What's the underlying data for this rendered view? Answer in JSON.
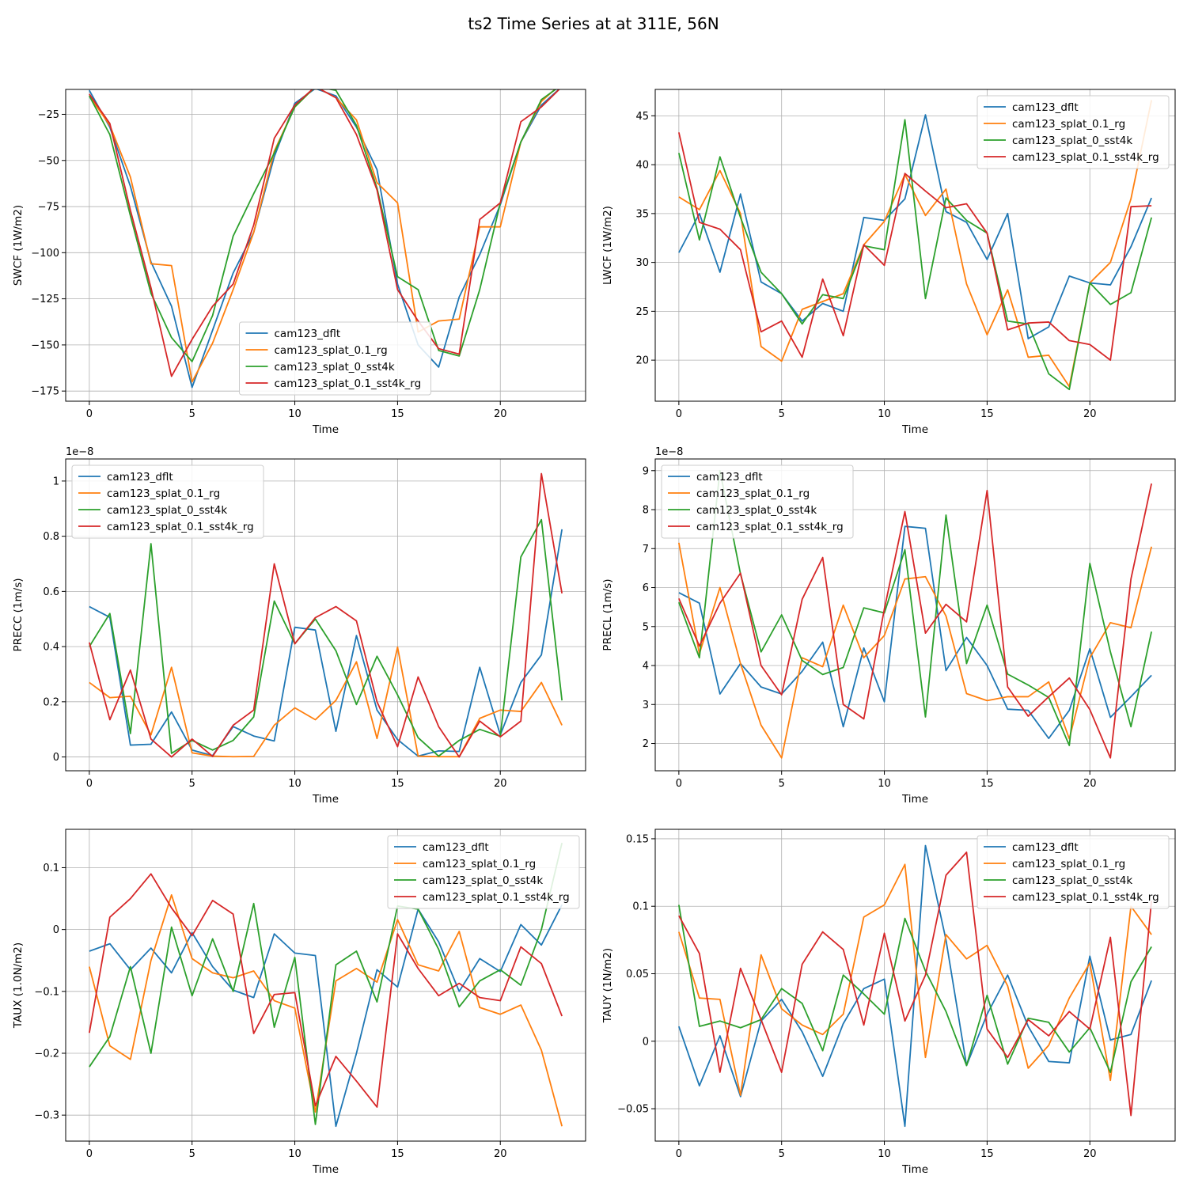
{
  "figure_title": "ts2 Time Series at at 311E, 56N",
  "colors": {
    "series": [
      "#1f77b4",
      "#ff7f0e",
      "#2ca02c",
      "#d62728"
    ],
    "grid": "#b0b0b0",
    "spine": "#000000"
  },
  "chart_data": [
    {
      "type": "line",
      "xlabel": "Time",
      "ylabel": "SWCF (1W/m2)",
      "xlim": [
        -1.15,
        24.15
      ],
      "ylim": [
        -180.5,
        -11.5
      ],
      "xticks": [
        0,
        5,
        10,
        15,
        20
      ],
      "yticks": [
        -175,
        -150,
        -125,
        -100,
        -75,
        -50,
        -25
      ],
      "exponent_label": "",
      "legend": "lower-center",
      "series": [
        {
          "name": "cam123_dflt",
          "values": [
            -12,
            -32,
            -64,
            -105,
            -129,
            -173,
            -142,
            -111,
            -89,
            -48,
            -19,
            -11,
            -15,
            -32,
            -55,
            -117,
            -150,
            -162,
            -124,
            -101,
            -74,
            -40,
            -20,
            -10
          ]
        },
        {
          "name": "cam123_splat_0.1_rg",
          "values": [
            -15,
            -31,
            -59,
            -106,
            -107,
            -170,
            -149,
            -120,
            -89,
            -45,
            -21,
            -10,
            -16,
            -28,
            -62,
            -73,
            -143,
            -137,
            -136,
            -86,
            -86,
            -40,
            -18,
            -8
          ]
        },
        {
          "name": "cam123_splat_0_sst4k",
          "values": [
            -15,
            -36,
            -80,
            -122,
            -146,
            -159,
            -134,
            -91,
            -68,
            -46,
            -21,
            -10,
            -12,
            -31,
            -65,
            -113,
            -120,
            -153,
            -156,
            -120,
            -73,
            -40,
            -17,
            -9
          ]
        },
        {
          "name": "cam123_splat_0.1_sst4k_rg",
          "values": [
            -14,
            -30,
            -77,
            -119,
            -167,
            -147,
            -129,
            -117,
            -85,
            -38,
            -20,
            -10,
            -16,
            -36,
            -66,
            -120,
            -137,
            -152,
            -155,
            -82,
            -73,
            -29,
            -21,
            -10
          ]
        }
      ]
    },
    {
      "type": "line",
      "xlabel": "Time",
      "ylabel": "LWCF (1W/m2)",
      "xlim": [
        -1.15,
        24.15
      ],
      "ylim": [
        15.8,
        47.7
      ],
      "xticks": [
        0,
        5,
        10,
        15,
        20
      ],
      "yticks": [
        20,
        25,
        30,
        35,
        40,
        45
      ],
      "exponent_label": "",
      "legend": "upper-right",
      "series": [
        {
          "name": "cam123_dflt",
          "values": [
            31,
            35,
            29,
            37,
            28,
            26.8,
            24,
            25.8,
            25,
            34.6,
            34.3,
            36.5,
            45.1,
            35.2,
            34.1,
            30.3,
            35,
            22.2,
            23.4,
            28.6,
            27.9,
            27.7,
            31.6,
            36.6
          ]
        },
        {
          "name": "cam123_splat_0.1_rg",
          "values": [
            36.7,
            35.4,
            39.4,
            35,
            21.4,
            19.9,
            25.2,
            26,
            26.8,
            31.8,
            34.2,
            39,
            34.8,
            37.5,
            27.8,
            22.6,
            27.2,
            20.3,
            20.5,
            17.3,
            27.9,
            30,
            36.5,
            46.6
          ]
        },
        {
          "name": "cam123_splat_0_sst4k",
          "values": [
            41.2,
            32.3,
            40.8,
            34.6,
            29,
            26.8,
            23.7,
            26.7,
            26.3,
            31.7,
            31.3,
            44.6,
            26.3,
            36.6,
            34.3,
            33,
            24,
            23.7,
            18.6,
            17,
            27.9,
            25.7,
            26.9,
            34.6
          ]
        },
        {
          "name": "cam123_splat_0.1_sst4k_rg",
          "values": [
            43.3,
            34.1,
            33.4,
            31.3,
            22.9,
            24,
            20.3,
            28.3,
            22.5,
            31.8,
            29.7,
            39.1,
            37.3,
            35.6,
            36,
            33,
            23.1,
            23.8,
            23.9,
            22,
            21.6,
            20,
            35.7,
            35.8
          ]
        }
      ]
    },
    {
      "type": "line",
      "xlabel": "Time",
      "ylabel": "PRECC (1m/s)",
      "xlim": [
        -1.15,
        24.15
      ],
      "ylim": [
        -0.05,
        1.08
      ],
      "xticks": [
        0,
        5,
        10,
        15,
        20
      ],
      "yticks": [
        0.0,
        0.2,
        0.4,
        0.6,
        0.8,
        1.0
      ],
      "exponent_label": "1e−8",
      "legend": "upper-left",
      "series": [
        {
          "name": "cam123_dflt",
          "values": [
            0.545,
            0.506,
            0.043,
            0.046,
            0.163,
            0.025,
            0.005,
            0.11,
            0.076,
            0.058,
            0.47,
            0.46,
            0.093,
            0.44,
            0.17,
            0.063,
            0.003,
            0.022,
            0.02,
            0.325,
            0.08,
            0.27,
            0.37,
            0.825
          ]
        },
        {
          "name": "cam123_splat_0.1_rg",
          "values": [
            0.27,
            0.215,
            0.22,
            0.08,
            0.325,
            0.015,
            0.003,
            0.001,
            0.002,
            0.115,
            0.178,
            0.135,
            0.205,
            0.345,
            0.067,
            0.398,
            0.003,
            0.001,
            0.001,
            0.14,
            0.17,
            0.165,
            0.27,
            0.115
          ]
        },
        {
          "name": "cam123_splat_0_sst4k",
          "values": [
            0.4,
            0.52,
            0.085,
            0.773,
            0.013,
            0.06,
            0.025,
            0.06,
            0.145,
            0.565,
            0.41,
            0.5,
            0.385,
            0.19,
            0.365,
            0.225,
            0.07,
            0.003,
            0.06,
            0.1,
            0.075,
            0.725,
            0.86,
            0.205
          ]
        },
        {
          "name": "cam123_splat_0.1_sst4k_rg",
          "values": [
            0.415,
            0.135,
            0.315,
            0.065,
            0.0,
            0.065,
            0.002,
            0.115,
            0.17,
            0.7,
            0.41,
            0.505,
            0.545,
            0.493,
            0.2,
            0.037,
            0.29,
            0.11,
            0.0,
            0.13,
            0.073,
            0.13,
            1.027,
            0.593
          ]
        }
      ]
    },
    {
      "type": "line",
      "xlabel": "Time",
      "ylabel": "PRECL (1m/s)",
      "xlim": [
        -1.15,
        24.15
      ],
      "ylim": [
        1.3,
        9.3
      ],
      "xticks": [
        0,
        5,
        10,
        15,
        20
      ],
      "yticks": [
        2,
        3,
        4,
        5,
        6,
        7,
        8,
        9
      ],
      "exponent_label": "1e−8",
      "legend": "upper-left",
      "series": [
        {
          "name": "cam123_dflt",
          "values": [
            5.87,
            5.6,
            3.27,
            4.05,
            3.45,
            3.27,
            3.85,
            4.6,
            2.43,
            4.45,
            3.07,
            7.57,
            7.52,
            3.87,
            4.72,
            4.0,
            2.88,
            2.85,
            2.13,
            2.85,
            4.43,
            2.67,
            3.2,
            3.75
          ]
        },
        {
          "name": "cam123_splat_0.1_rg",
          "values": [
            7.15,
            4.3,
            6.0,
            4.05,
            2.47,
            1.63,
            4.2,
            3.97,
            5.55,
            4.2,
            4.77,
            6.22,
            6.28,
            5.27,
            3.28,
            3.1,
            3.2,
            3.2,
            3.58,
            2.12,
            4.2,
            5.1,
            4.97,
            7.05
          ]
        },
        {
          "name": "cam123_splat_0_sst4k",
          "values": [
            5.62,
            4.2,
            9.0,
            6.35,
            4.35,
            5.3,
            4.13,
            3.77,
            3.95,
            5.48,
            5.35,
            6.97,
            2.68,
            7.86,
            4.05,
            5.55,
            3.78,
            3.5,
            3.18,
            1.95,
            6.62,
            4.35,
            2.43,
            4.87
          ]
        },
        {
          "name": "cam123_splat_0.1_sst4k_rg",
          "values": [
            5.72,
            4.5,
            5.6,
            6.37,
            4.0,
            3.25,
            5.7,
            6.77,
            3.0,
            2.63,
            5.45,
            7.95,
            4.83,
            5.57,
            5.12,
            8.49,
            3.45,
            2.7,
            3.2,
            3.68,
            2.87,
            1.63,
            6.22,
            8.67
          ]
        }
      ]
    },
    {
      "type": "line",
      "xlabel": "Time",
      "ylabel": "TAUX (1.0N/m2)",
      "xlim": [
        -1.15,
        24.15
      ],
      "ylim": [
        -0.342,
        0.162
      ],
      "xticks": [
        0,
        5,
        10,
        15,
        20
      ],
      "yticks": [
        -0.3,
        -0.2,
        -0.1,
        0.0,
        0.1
      ],
      "exponent_label": "",
      "legend": "upper-right",
      "series": [
        {
          "name": "cam123_dflt",
          "values": [
            -0.035,
            -0.023,
            -0.065,
            -0.03,
            -0.07,
            -0.005,
            -0.06,
            -0.098,
            -0.11,
            -0.007,
            -0.038,
            -0.042,
            -0.318,
            -0.2,
            -0.065,
            -0.093,
            0.033,
            -0.02,
            -0.1,
            -0.047,
            -0.068,
            0.008,
            -0.025,
            0.04
          ]
        },
        {
          "name": "cam123_splat_0.1_rg",
          "values": [
            -0.06,
            -0.188,
            -0.21,
            -0.05,
            0.056,
            -0.047,
            -0.07,
            -0.078,
            -0.067,
            -0.115,
            -0.127,
            -0.295,
            -0.083,
            -0.063,
            -0.085,
            0.016,
            -0.057,
            -0.067,
            -0.003,
            -0.126,
            -0.137,
            -0.122,
            -0.195,
            -0.318
          ]
        },
        {
          "name": "cam123_splat_0_sst4k",
          "values": [
            -0.222,
            -0.173,
            -0.06,
            -0.2,
            0.004,
            -0.107,
            -0.015,
            -0.1,
            0.042,
            -0.158,
            -0.045,
            -0.315,
            -0.057,
            -0.035,
            -0.117,
            0.038,
            0.033,
            -0.032,
            -0.125,
            -0.083,
            -0.065,
            -0.09,
            0.0,
            0.14
          ]
        },
        {
          "name": "cam123_splat_0.1_sst4k_rg",
          "values": [
            -0.167,
            0.02,
            0.05,
            0.09,
            0.035,
            -0.01,
            0.047,
            0.025,
            -0.168,
            -0.105,
            -0.102,
            -0.285,
            -0.205,
            -0.245,
            -0.287,
            -0.007,
            -0.063,
            -0.107,
            -0.087,
            -0.11,
            -0.115,
            -0.028,
            -0.055,
            -0.14
          ]
        }
      ]
    },
    {
      "type": "line",
      "xlabel": "Time",
      "ylabel": "TAUY (1N/m2)",
      "xlim": [
        -1.15,
        24.15
      ],
      "ylim": [
        -0.074,
        0.157
      ],
      "xticks": [
        0,
        5,
        10,
        15,
        20
      ],
      "yticks": [
        -0.05,
        0.0,
        0.05,
        0.1,
        0.15
      ],
      "exponent_label": "",
      "legend": "upper-right",
      "series": [
        {
          "name": "cam123_dflt",
          "values": [
            0.011,
            -0.033,
            0.004,
            -0.041,
            0.015,
            0.031,
            0.007,
            -0.026,
            0.013,
            0.039,
            0.046,
            -0.063,
            0.145,
            0.075,
            -0.018,
            0.02,
            0.049,
            0.011,
            -0.015,
            -0.016,
            0.063,
            0.001,
            0.005,
            0.045
          ]
        },
        {
          "name": "cam123_splat_0.1_rg",
          "values": [
            0.081,
            0.032,
            0.031,
            -0.04,
            0.064,
            0.024,
            0.012,
            0.005,
            0.02,
            0.092,
            0.101,
            0.131,
            -0.012,
            0.079,
            0.061,
            0.071,
            0.041,
            -0.02,
            -0.003,
            0.032,
            0.058,
            -0.029,
            0.1,
            0.079
          ]
        },
        {
          "name": "cam123_splat_0_sst4k",
          "values": [
            0.101,
            0.011,
            0.015,
            0.01,
            0.016,
            0.039,
            0.028,
            -0.007,
            0.049,
            0.035,
            0.02,
            0.091,
            0.052,
            0.022,
            -0.018,
            0.034,
            -0.017,
            0.017,
            0.014,
            -0.008,
            0.01,
            -0.023,
            0.044,
            0.07
          ]
        },
        {
          "name": "cam123_splat_0.1_sst4k_rg",
          "values": [
            0.093,
            0.065,
            -0.023,
            0.054,
            0.016,
            -0.023,
            0.057,
            0.081,
            0.068,
            0.012,
            0.08,
            0.015,
            0.049,
            0.123,
            0.14,
            0.009,
            -0.012,
            0.016,
            0.004,
            0.022,
            0.009,
            0.077,
            -0.055,
            0.104
          ]
        }
      ]
    }
  ]
}
